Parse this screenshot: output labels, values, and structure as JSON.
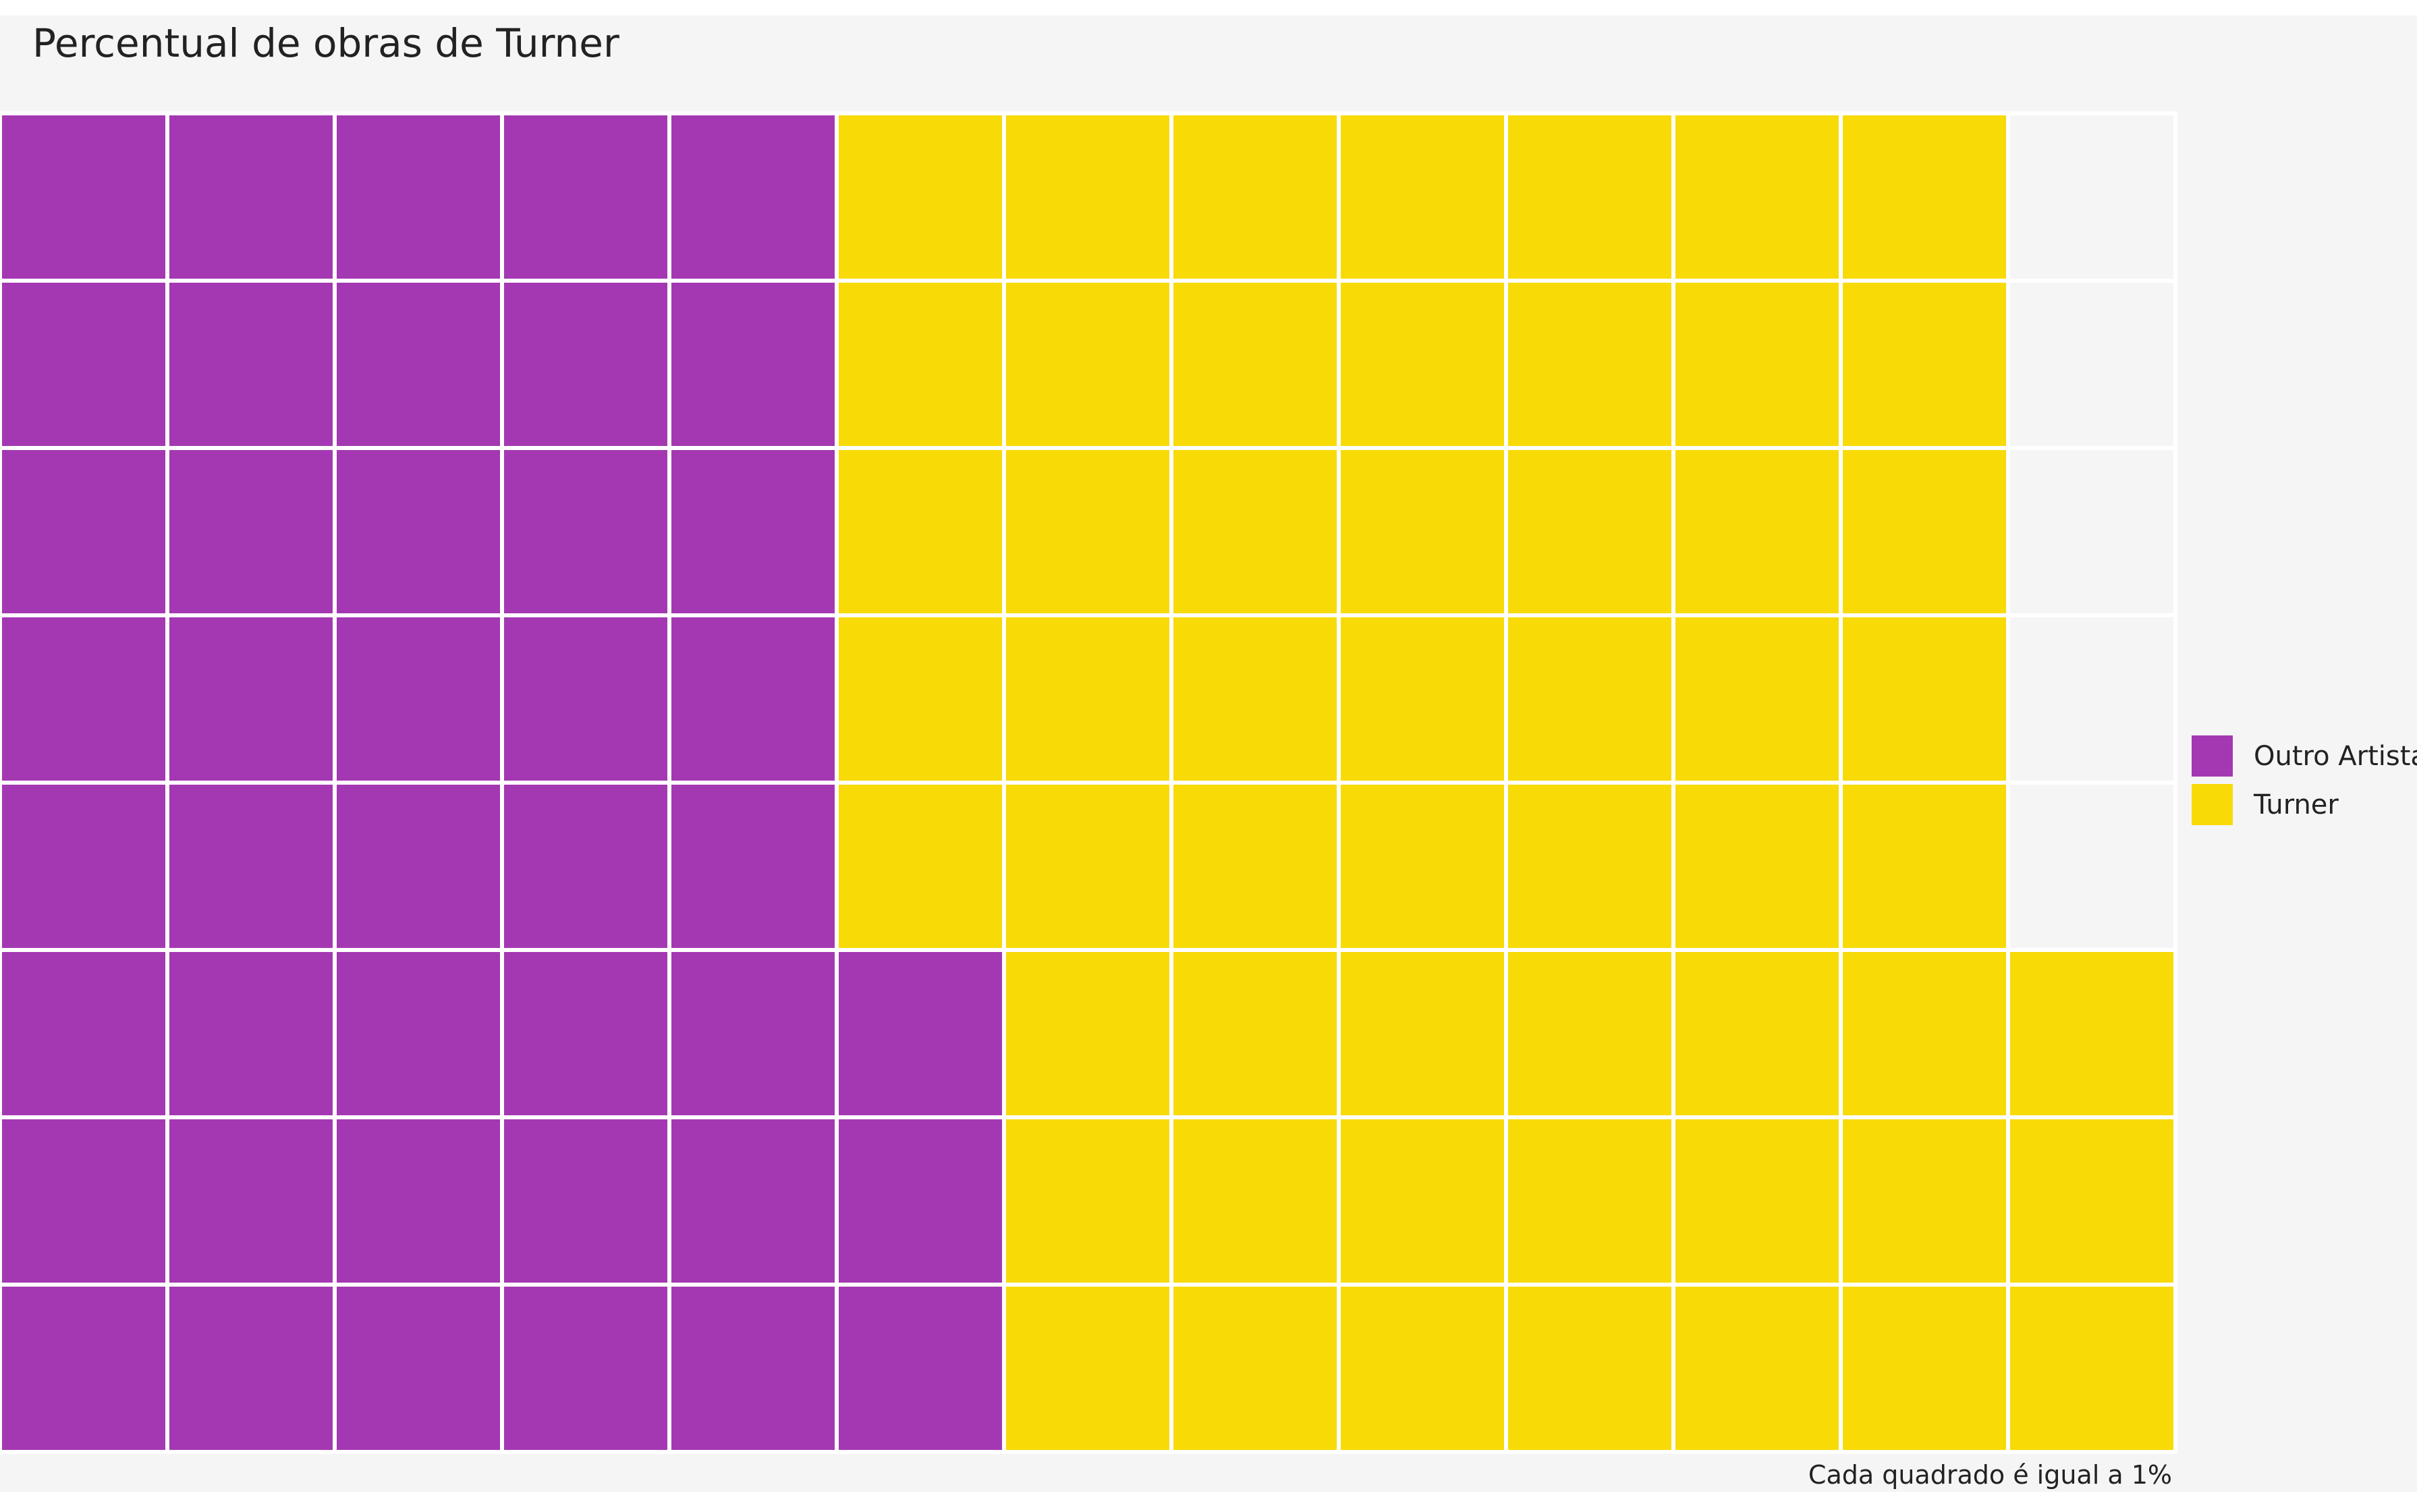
{
  "title": "Percentual de obras de Turner",
  "caption": "Cada quadrado é igual a 1%",
  "legend": {
    "items": [
      {
        "label": "Outro Artista",
        "color": "#a438b2"
      },
      {
        "label": "Turner",
        "color": "#f8da06"
      }
    ]
  },
  "chart_data": {
    "type": "waffle",
    "title": "Percentual de obras de Turner",
    "caption": "Cada quadrado é igual a 1%",
    "rows": 8,
    "columns": 13,
    "fill_order": "column-major, bottom to top, left to right",
    "categories": [
      "Outro Artista",
      "Turner"
    ],
    "values": [
      43,
      56
    ],
    "colors": [
      "#a438b2",
      "#f8da06"
    ],
    "empty_color": "#f5f5f5",
    "legend_position": "right"
  }
}
